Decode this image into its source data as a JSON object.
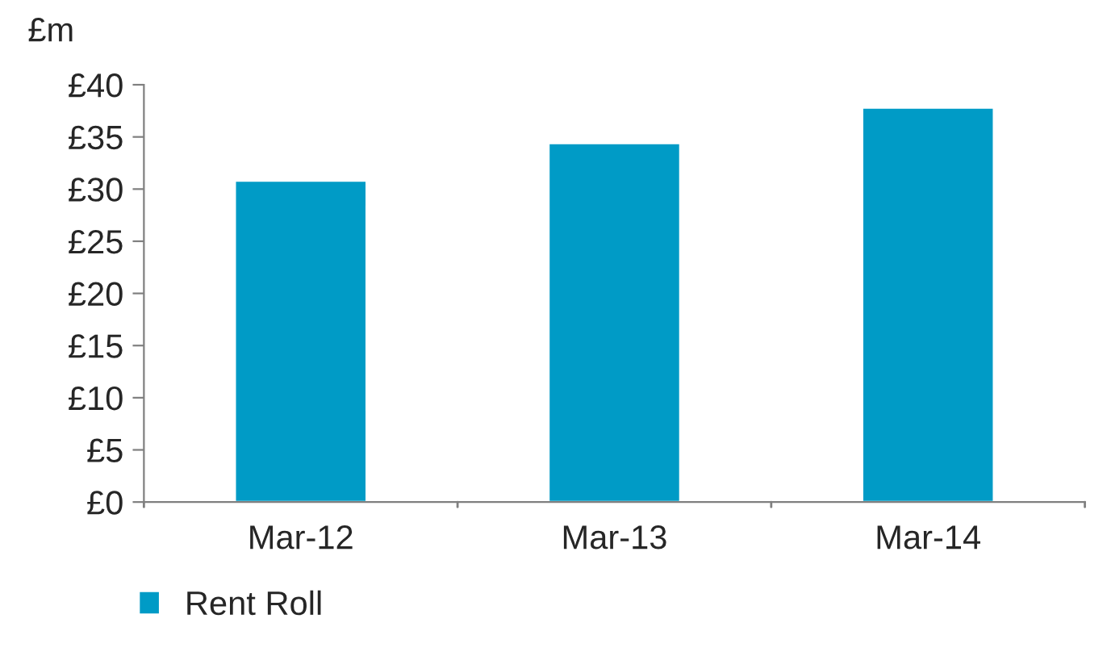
{
  "chart_data": {
    "type": "bar",
    "ylabel": "£m",
    "categories": [
      "Mar-12",
      "Mar-13",
      "Mar-14"
    ],
    "series": [
      {
        "name": "Rent Roll",
        "color": "#009bc6",
        "values": [
          30.8,
          34.4,
          37.8
        ]
      }
    ],
    "ylim": [
      0,
      40
    ],
    "yticks": [
      {
        "value": 0,
        "label": "£0"
      },
      {
        "value": 5,
        "label": "£5"
      },
      {
        "value": 10,
        "label": "£10"
      },
      {
        "value": 15,
        "label": "£15"
      },
      {
        "value": 20,
        "label": "£20"
      },
      {
        "value": 25,
        "label": "£25"
      },
      {
        "value": 30,
        "label": "£30"
      },
      {
        "value": 35,
        "label": "£35"
      },
      {
        "value": 40,
        "label": "£40"
      }
    ],
    "grid": false,
    "legend": "bottom left"
  }
}
